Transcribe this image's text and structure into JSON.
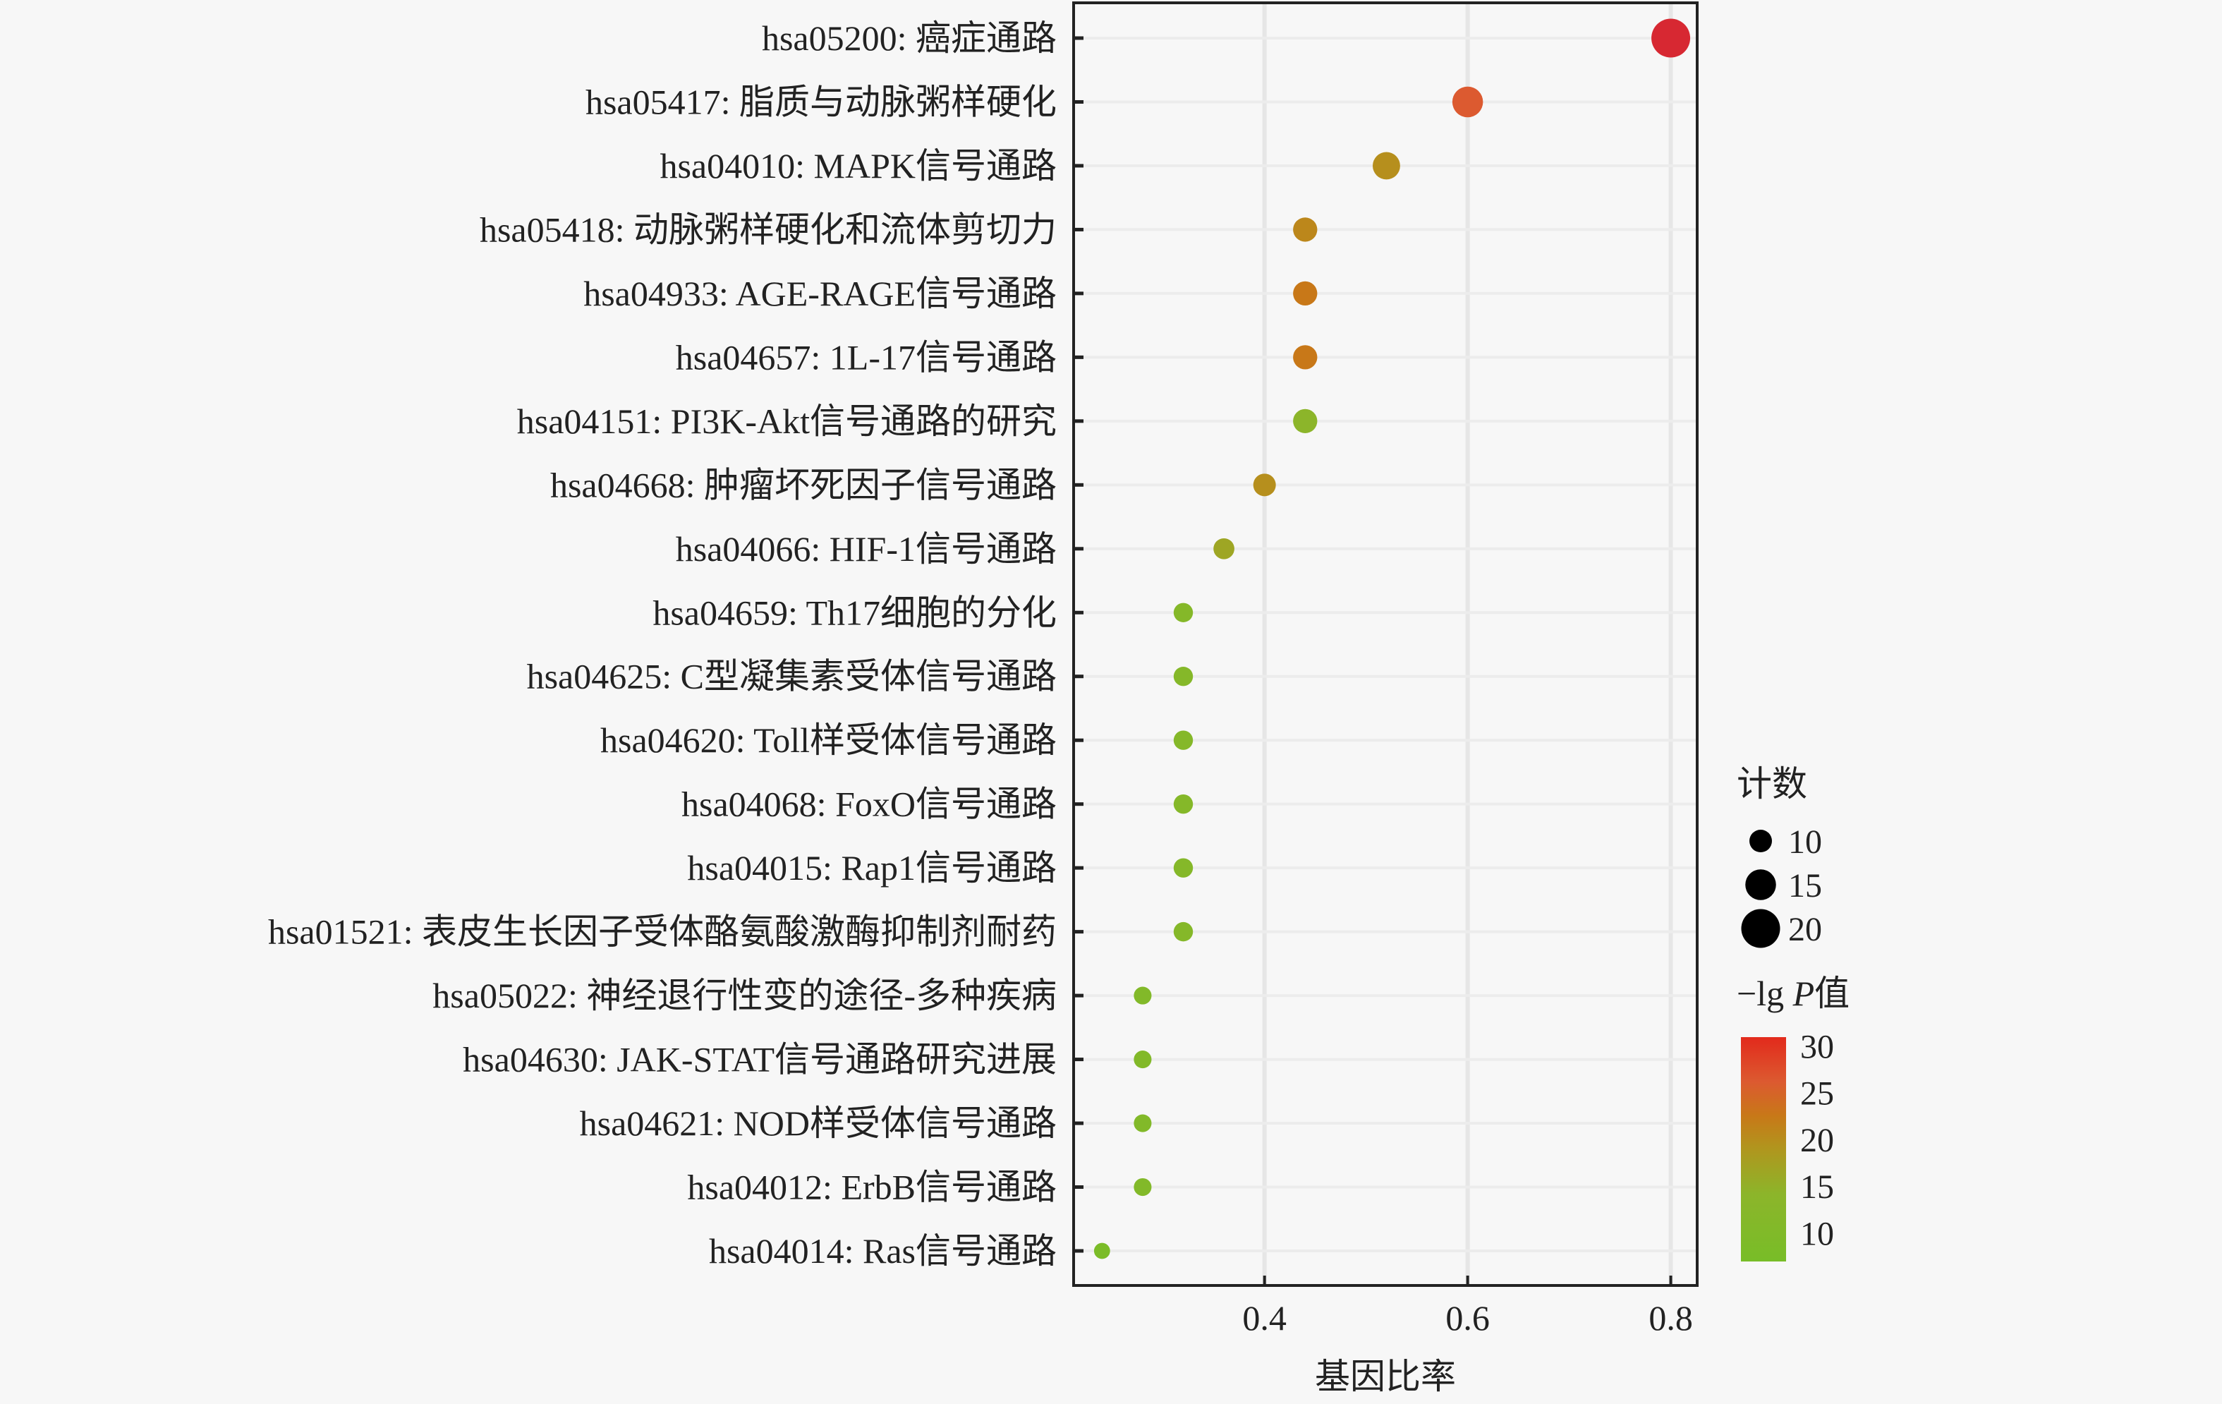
{
  "chart_data": {
    "type": "scatter",
    "title": "",
    "xlabel": "基因比率",
    "ylabel": "",
    "xlim": [
      0.212,
      0.826
    ],
    "x_ticks": [
      0.4,
      0.6,
      0.8
    ],
    "x_tick_labels": [
      "0.4",
      "0.6",
      "0.8"
    ],
    "grid": true,
    "categories": [
      "hsa05200: 癌症通路",
      "hsa05417: 脂质与动脉粥样硬化",
      "hsa04010: MAPK信号通路",
      "hsa05418: 动脉粥样硬化和流体剪切力",
      "hsa04933: AGE-RAGE信号通路",
      "hsa04657: 1L-17信号通路",
      "hsa04151: PI3K-Akt信号通路的研究",
      "hsa04668: 肿瘤坏死因子信号通路",
      "hsa04066: HIF-1信号通路",
      "hsa04659: Th17细胞的分化",
      "hsa04625: C型凝集素受体信号通路",
      "hsa04620: Toll样受体信号通路",
      "hsa04068: FoxO信号通路",
      "hsa04015: Rap1信号通路",
      "hsa01521: 表皮生长因子受体酪氨酸激酶抑制剂耐药",
      "hsa05022: 神经退行性变的途径-多种疾病",
      "hsa04630: JAK-STAT信号通路研究进展",
      "hsa04621: NOD样受体信号通路",
      "hsa04012: ErbB信号通路",
      "hsa04014: Ras信号通路"
    ],
    "gene_ratio": [
      0.8,
      0.6,
      0.52,
      0.44,
      0.44,
      0.44,
      0.44,
      0.4,
      0.36,
      0.32,
      0.32,
      0.32,
      0.32,
      0.32,
      0.32,
      0.28,
      0.28,
      0.28,
      0.28,
      0.24
    ],
    "count": [
      20,
      15,
      13,
      11,
      11,
      11,
      11,
      10,
      9,
      8,
      8,
      8,
      8,
      8,
      8,
      7,
      7,
      7,
      7,
      6
    ],
    "neg_log10_p": [
      30,
      25,
      18,
      19,
      21,
      21,
      13,
      18,
      15,
      11,
      11,
      11,
      11,
      11,
      11,
      10,
      10,
      10,
      10,
      8
    ],
    "size_legend": {
      "title": "计数",
      "values": [
        10,
        15,
        20
      ],
      "labels": [
        "10",
        "15",
        "20"
      ]
    },
    "color_legend": {
      "title_prefix": "−lg ",
      "title_italic": "P",
      "title_suffix": "值",
      "range": [
        7,
        31
      ],
      "ticks": [
        30,
        25,
        20,
        15,
        10
      ],
      "tick_labels": [
        "30",
        "25",
        "20",
        "15",
        "10"
      ]
    },
    "colors": {
      "low": "#7cbf2a",
      "mid": "#b8961c",
      "high_mid": "#e0652e",
      "high": "#d81f35"
    }
  }
}
